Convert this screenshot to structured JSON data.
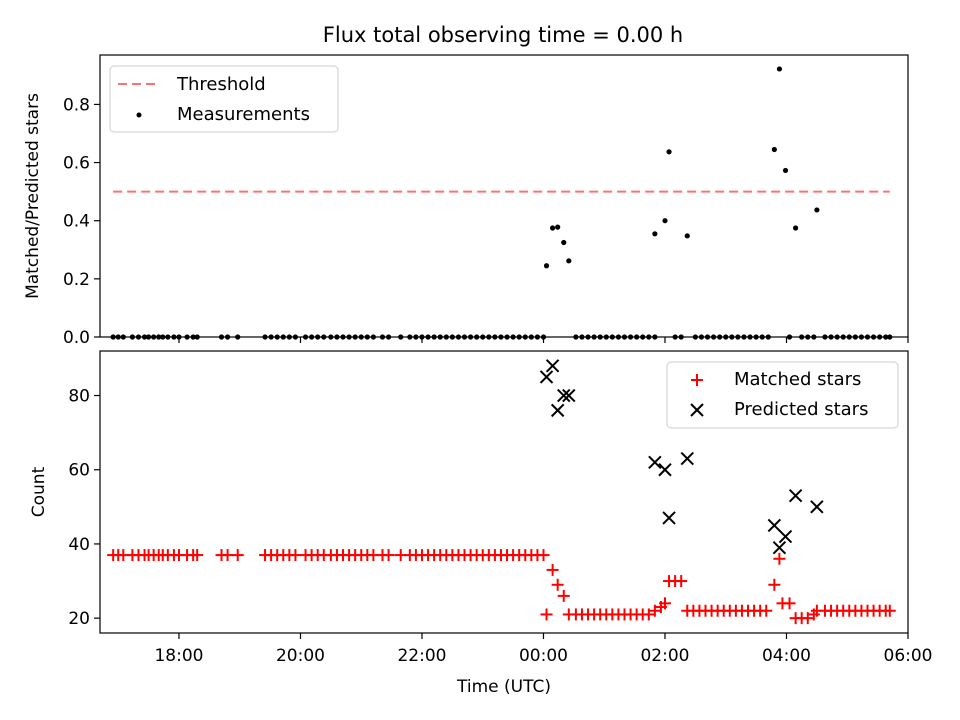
{
  "chart_data": [
    {
      "type": "scatter",
      "title": "Flux total observing time = 0.00 h",
      "xlabel": "",
      "ylabel": "Matched/Predicted stars",
      "xlim": [
        "16:42",
        "06:00"
      ],
      "ylim": [
        0,
        0.97
      ],
      "yticks": [
        "0.0",
        "0.2",
        "0.4",
        "0.6",
        "0.8"
      ],
      "legend_position": "upper-left",
      "threshold": {
        "name": "Threshold",
        "value": 0.5,
        "x_range": [
          "16:55",
          "05:42"
        ],
        "color": "#ff7070"
      },
      "series": [
        {
          "name": "Measurements",
          "color": "#000000",
          "points": [
            [
              "16:55",
              0
            ],
            [
              "17:00",
              0
            ],
            [
              "17:05",
              0
            ],
            [
              "17:14",
              0
            ],
            [
              "17:20",
              0
            ],
            [
              "17:26",
              0
            ],
            [
              "17:30",
              0
            ],
            [
              "17:35",
              0
            ],
            [
              "17:40",
              0
            ],
            [
              "17:44",
              0
            ],
            [
              "17:49",
              0
            ],
            [
              "17:55",
              0
            ],
            [
              "18:00",
              0
            ],
            [
              "18:08",
              0
            ],
            [
              "18:14",
              0
            ],
            [
              "18:18",
              0
            ],
            [
              "18:42",
              0
            ],
            [
              "18:48",
              0
            ],
            [
              "18:58",
              0
            ],
            [
              "19:25",
              0
            ],
            [
              "19:31",
              0
            ],
            [
              "19:37",
              0
            ],
            [
              "19:43",
              0
            ],
            [
              "19:49",
              0
            ],
            [
              "19:55",
              0
            ],
            [
              "20:05",
              0
            ],
            [
              "20:11",
              0
            ],
            [
              "20:17",
              0
            ],
            [
              "20:23",
              0
            ],
            [
              "20:30",
              0
            ],
            [
              "20:36",
              0
            ],
            [
              "20:42",
              0
            ],
            [
              "20:48",
              0
            ],
            [
              "20:54",
              0
            ],
            [
              "21:00",
              0
            ],
            [
              "21:06",
              0
            ],
            [
              "21:12",
              0
            ],
            [
              "21:21",
              0
            ],
            [
              "21:27",
              0
            ],
            [
              "21:39",
              0
            ],
            [
              "21:48",
              0
            ],
            [
              "21:54",
              0
            ],
            [
              "22:00",
              0
            ],
            [
              "22:06",
              0
            ],
            [
              "22:12",
              0
            ],
            [
              "22:18",
              0
            ],
            [
              "22:24",
              0
            ],
            [
              "22:30",
              0
            ],
            [
              "22:36",
              0
            ],
            [
              "22:42",
              0
            ],
            [
              "22:48",
              0
            ],
            [
              "22:54",
              0
            ],
            [
              "23:00",
              0
            ],
            [
              "23:06",
              0
            ],
            [
              "23:12",
              0
            ],
            [
              "23:18",
              0
            ],
            [
              "23:24",
              0
            ],
            [
              "23:30",
              0
            ],
            [
              "23:36",
              0
            ],
            [
              "23:42",
              0
            ],
            [
              "23:48",
              0
            ],
            [
              "23:54",
              0
            ],
            [
              "00:00",
              0
            ],
            [
              "00:03",
              0.245
            ],
            [
              "00:09",
              0.375
            ],
            [
              "00:14",
              0.378
            ],
            [
              "00:20",
              0.325
            ],
            [
              "00:25",
              0.262
            ],
            [
              "00:32",
              0
            ],
            [
              "00:38",
              0
            ],
            [
              "00:44",
              0
            ],
            [
              "00:50",
              0
            ],
            [
              "00:56",
              0
            ],
            [
              "01:02",
              0
            ],
            [
              "01:08",
              0
            ],
            [
              "01:14",
              0
            ],
            [
              "01:20",
              0
            ],
            [
              "01:26",
              0
            ],
            [
              "01:32",
              0
            ],
            [
              "01:38",
              0
            ],
            [
              "01:44",
              0
            ],
            [
              "01:50",
              0
            ],
            [
              "01:50",
              0.355
            ],
            [
              "02:00",
              0.4
            ],
            [
              "02:04",
              0.637
            ],
            [
              "02:10",
              0
            ],
            [
              "02:16",
              0
            ],
            [
              "02:22",
              0.348
            ],
            [
              "02:30",
              0
            ],
            [
              "02:36",
              0
            ],
            [
              "02:42",
              0
            ],
            [
              "02:48",
              0
            ],
            [
              "02:54",
              0
            ],
            [
              "03:00",
              0
            ],
            [
              "03:06",
              0
            ],
            [
              "03:12",
              0
            ],
            [
              "03:18",
              0
            ],
            [
              "03:24",
              0
            ],
            [
              "03:30",
              0
            ],
            [
              "03:36",
              0
            ],
            [
              "03:42",
              0
            ],
            [
              "03:48",
              0.645
            ],
            [
              "03:53",
              0.922
            ],
            [
              "03:59",
              0.573
            ],
            [
              "04:03",
              0
            ],
            [
              "04:09",
              0.375
            ],
            [
              "04:15",
              0
            ],
            [
              "04:21",
              0
            ],
            [
              "04:27",
              0
            ],
            [
              "04:30",
              0.437
            ],
            [
              "04:38",
              0
            ],
            [
              "04:44",
              0
            ],
            [
              "04:50",
              0
            ],
            [
              "04:56",
              0
            ],
            [
              "05:02",
              0
            ],
            [
              "05:08",
              0
            ],
            [
              "05:14",
              0
            ],
            [
              "05:20",
              0
            ],
            [
              "05:26",
              0
            ],
            [
              "05:32",
              0
            ],
            [
              "05:38",
              0
            ],
            [
              "05:42",
              0
            ]
          ]
        }
      ]
    },
    {
      "type": "scatter",
      "title": "",
      "xlabel": "Time (UTC)",
      "ylabel": "Count",
      "xlim": [
        "16:42",
        "06:00"
      ],
      "ylim": [
        16,
        92
      ],
      "yticks": [
        "20",
        "40",
        "60",
        "80"
      ],
      "xticks": [
        "18:00",
        "20:00",
        "22:00",
        "00:00",
        "02:00",
        "04:00",
        "06:00"
      ],
      "legend_position": "upper-right",
      "series": [
        {
          "name": "Matched stars",
          "color": "#ff0000",
          "marker": "plus",
          "points": [
            [
              "16:55",
              37
            ],
            [
              "17:00",
              37
            ],
            [
              "17:05",
              37
            ],
            [
              "17:14",
              37
            ],
            [
              "17:20",
              37
            ],
            [
              "17:26",
              37
            ],
            [
              "17:30",
              37
            ],
            [
              "17:35",
              37
            ],
            [
              "17:40",
              37
            ],
            [
              "17:44",
              37
            ],
            [
              "17:49",
              37
            ],
            [
              "17:55",
              37
            ],
            [
              "18:00",
              37
            ],
            [
              "18:08",
              37
            ],
            [
              "18:14",
              37
            ],
            [
              "18:18",
              37
            ],
            [
              "18:42",
              37
            ],
            [
              "18:48",
              37
            ],
            [
              "18:58",
              37
            ],
            [
              "19:25",
              37
            ],
            [
              "19:31",
              37
            ],
            [
              "19:37",
              37
            ],
            [
              "19:43",
              37
            ],
            [
              "19:49",
              37
            ],
            [
              "19:55",
              37
            ],
            [
              "20:05",
              37
            ],
            [
              "20:11",
              37
            ],
            [
              "20:17",
              37
            ],
            [
              "20:23",
              37
            ],
            [
              "20:30",
              37
            ],
            [
              "20:36",
              37
            ],
            [
              "20:42",
              37
            ],
            [
              "20:48",
              37
            ],
            [
              "20:54",
              37
            ],
            [
              "21:00",
              37
            ],
            [
              "21:06",
              37
            ],
            [
              "21:12",
              37
            ],
            [
              "21:21",
              37
            ],
            [
              "21:27",
              37
            ],
            [
              "21:39",
              37
            ],
            [
              "21:48",
              37
            ],
            [
              "21:54",
              37
            ],
            [
              "22:00",
              37
            ],
            [
              "22:06",
              37
            ],
            [
              "22:12",
              37
            ],
            [
              "22:18",
              37
            ],
            [
              "22:24",
              37
            ],
            [
              "22:30",
              37
            ],
            [
              "22:36",
              37
            ],
            [
              "22:42",
              37
            ],
            [
              "22:48",
              37
            ],
            [
              "22:54",
              37
            ],
            [
              "23:00",
              37
            ],
            [
              "23:06",
              37
            ],
            [
              "23:12",
              37
            ],
            [
              "23:18",
              37
            ],
            [
              "23:24",
              37
            ],
            [
              "23:30",
              37
            ],
            [
              "23:36",
              37
            ],
            [
              "23:42",
              37
            ],
            [
              "23:48",
              37
            ],
            [
              "23:54",
              37
            ],
            [
              "00:00",
              37
            ],
            [
              "00:03",
              21
            ],
            [
              "00:09",
              33
            ],
            [
              "00:14",
              29
            ],
            [
              "00:20",
              26
            ],
            [
              "00:25",
              21
            ],
            [
              "00:32",
              21
            ],
            [
              "00:38",
              21
            ],
            [
              "00:44",
              21
            ],
            [
              "00:50",
              21
            ],
            [
              "00:56",
              21
            ],
            [
              "01:02",
              21
            ],
            [
              "01:08",
              21
            ],
            [
              "01:14",
              21
            ],
            [
              "01:20",
              21
            ],
            [
              "01:26",
              21
            ],
            [
              "01:32",
              21
            ],
            [
              "01:38",
              21
            ],
            [
              "01:44",
              21
            ],
            [
              "01:50",
              22
            ],
            [
              "01:56",
              23
            ],
            [
              "02:00",
              24
            ],
            [
              "02:04",
              30
            ],
            [
              "02:10",
              30
            ],
            [
              "02:16",
              30
            ],
            [
              "02:22",
              22
            ],
            [
              "02:28",
              22
            ],
            [
              "02:34",
              22
            ],
            [
              "02:40",
              22
            ],
            [
              "02:46",
              22
            ],
            [
              "02:52",
              22
            ],
            [
              "02:58",
              22
            ],
            [
              "03:04",
              22
            ],
            [
              "03:10",
              22
            ],
            [
              "03:16",
              22
            ],
            [
              "03:22",
              22
            ],
            [
              "03:28",
              22
            ],
            [
              "03:34",
              22
            ],
            [
              "03:40",
              22
            ],
            [
              "03:48",
              29
            ],
            [
              "03:53",
              36
            ],
            [
              "03:56",
              24
            ],
            [
              "04:03",
              24
            ],
            [
              "04:09",
              20
            ],
            [
              "04:15",
              20
            ],
            [
              "04:21",
              20
            ],
            [
              "04:27",
              21
            ],
            [
              "04:30",
              22
            ],
            [
              "04:38",
              22
            ],
            [
              "04:44",
              22
            ],
            [
              "04:50",
              22
            ],
            [
              "04:56",
              22
            ],
            [
              "05:02",
              22
            ],
            [
              "05:08",
              22
            ],
            [
              "05:14",
              22
            ],
            [
              "05:20",
              22
            ],
            [
              "05:26",
              22
            ],
            [
              "05:32",
              22
            ],
            [
              "05:38",
              22
            ],
            [
              "05:42",
              22
            ]
          ]
        },
        {
          "name": "Predicted stars",
          "color": "#000000",
          "marker": "x",
          "points": [
            [
              "00:03",
              85
            ],
            [
              "00:09",
              88
            ],
            [
              "00:14",
              76
            ],
            [
              "00:20",
              80
            ],
            [
              "00:25",
              80
            ],
            [
              "01:50",
              62
            ],
            [
              "02:00",
              60
            ],
            [
              "02:04",
              47
            ],
            [
              "02:22",
              63
            ],
            [
              "03:48",
              45
            ],
            [
              "03:53",
              39
            ],
            [
              "03:59",
              42
            ],
            [
              "04:09",
              53
            ],
            [
              "04:30",
              50
            ]
          ]
        }
      ]
    }
  ]
}
